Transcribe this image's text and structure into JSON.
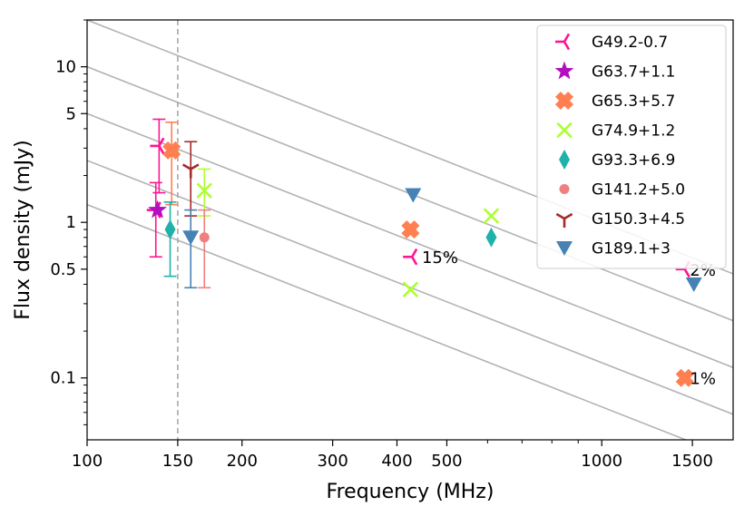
{
  "chart_data": {
    "type": "scatter",
    "title": "",
    "xlabel": "Frequency (MHz)",
    "ylabel": "Flux density (mJy)",
    "xscale": "log",
    "yscale": "log",
    "xlim": [
      100,
      1800
    ],
    "ylim": [
      0.04,
      20
    ],
    "x_ticks": [
      {
        "value": 100,
        "label": "100"
      },
      {
        "value": 150,
        "label": "150"
      },
      {
        "value": 200,
        "label": "200"
      },
      {
        "value": 300,
        "label": "300"
      },
      {
        "value": 400,
        "label": "400"
      },
      {
        "value": 500,
        "label": "500"
      },
      {
        "value": 1000,
        "label": "1000"
      },
      {
        "value": 1500,
        "label": "1500"
      }
    ],
    "y_ticks": [
      {
        "value": 0.1,
        "label": "0.1"
      },
      {
        "value": 0.5,
        "label": "0.5"
      },
      {
        "value": 1,
        "label": "1"
      },
      {
        "value": 5,
        "label": "5"
      },
      {
        "value": 10,
        "label": "10"
      }
    ],
    "reference_vline": 150,
    "spectral_lines": [
      {
        "index": -1.3,
        "value_at_100": 1.3
      },
      {
        "index": -1.3,
        "value_at_100": 2.5
      },
      {
        "index": -1.3,
        "value_at_100": 5.0
      },
      {
        "index": -1.3,
        "value_at_100": 10.0
      },
      {
        "index": -1.3,
        "value_at_100": 20.0
      }
    ],
    "legend_position": "top-right",
    "series": [
      {
        "name": "G49.2-0.7",
        "color": "#ff1493",
        "marker": "tri_left",
        "points": [
          {
            "x": 138,
            "y": 3.1,
            "err_low": 1.55,
            "err_high": 4.6
          },
          {
            "x": 136,
            "y": 1.2,
            "err_low": 0.6,
            "err_high": 1.8
          },
          {
            "x": 428,
            "y": 0.6
          },
          {
            "x": 1450,
            "y": 0.5
          }
        ]
      },
      {
        "name": "G63.7+1.1",
        "color": "#b30fbf",
        "marker": "star",
        "points": [
          {
            "x": 137,
            "y": 1.2
          }
        ]
      },
      {
        "name": "G65.3+5.7",
        "color": "#ff7f50",
        "marker": "x_filled",
        "points": [
          {
            "x": 146,
            "y": 2.9,
            "err_low": 1.3,
            "err_high": 4.4
          },
          {
            "x": 425,
            "y": 0.9
          },
          {
            "x": 1450,
            "y": 0.1
          }
        ]
      },
      {
        "name": "G74.9+1.2",
        "color": "#adff2f",
        "marker": "x",
        "points": [
          {
            "x": 169,
            "y": 1.6,
            "err_low": 1.1,
            "err_high": 2.2
          },
          {
            "x": 425,
            "y": 0.37
          },
          {
            "x": 610,
            "y": 1.1
          }
        ]
      },
      {
        "name": "G93.3+6.9",
        "color": "#20b2aa",
        "marker": "thin_diamond",
        "points": [
          {
            "x": 145,
            "y": 0.9,
            "err_low": 0.45,
            "err_high": 1.35
          },
          {
            "x": 610,
            "y": 0.8
          }
        ]
      },
      {
        "name": "G141.2+5.0",
        "color": "#f08080",
        "marker": "circle",
        "points": [
          {
            "x": 169,
            "y": 0.8,
            "err_low": 0.38,
            "err_high": 1.2
          }
        ]
      },
      {
        "name": "G150.3+4.5",
        "color": "#a52a2a",
        "marker": "tri_down",
        "points": [
          {
            "x": 159,
            "y": 2.2,
            "err_low": 1.1,
            "err_high": 3.3
          }
        ]
      },
      {
        "name": "G189.1+3",
        "color": "#4682b4",
        "marker": "triangle_down",
        "points": [
          {
            "x": 159,
            "y": 0.8,
            "err_low": 0.38,
            "err_high": 1.2
          },
          {
            "x": 430,
            "y": 1.5
          },
          {
            "x": 1510,
            "y": 0.4
          }
        ]
      }
    ],
    "annotations": [
      {
        "text": "15%",
        "x": 440,
        "y": 0.6
      },
      {
        "text": "2%",
        "x": 1460,
        "y": 0.5
      },
      {
        "text": "1%",
        "x": 1460,
        "y": 0.1
      }
    ]
  }
}
